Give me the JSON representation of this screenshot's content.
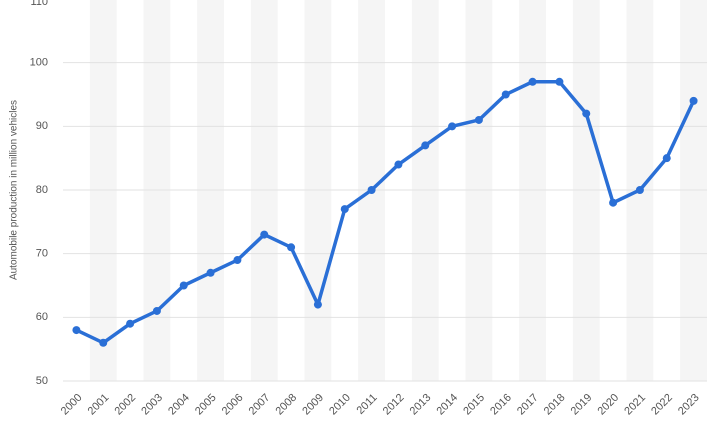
{
  "chart_data": {
    "type": "line",
    "y_label": "Automobile production in million vehicles",
    "categories": [
      "2000",
      "2001",
      "2002",
      "2003",
      "2004",
      "2005",
      "2006",
      "2007",
      "2008",
      "2009",
      "2010",
      "2011",
      "2012",
      "2013",
      "2014",
      "2015",
      "2016",
      "2017",
      "2018",
      "2019",
      "2020",
      "2021",
      "2022",
      "2023"
    ],
    "series": [
      {
        "name": "Automobile production",
        "color": "#2a6fd6",
        "values": [
          58,
          56,
          59,
          61,
          65,
          67,
          69,
          73,
          71,
          62,
          77,
          80,
          84,
          87,
          90,
          91,
          95,
          97,
          97,
          92,
          78,
          80,
          85,
          94
        ]
      }
    ],
    "ylim": [
      50,
      110
    ],
    "yticks": [
      50,
      60,
      70,
      80,
      90,
      100,
      110
    ],
    "grid": true
  }
}
